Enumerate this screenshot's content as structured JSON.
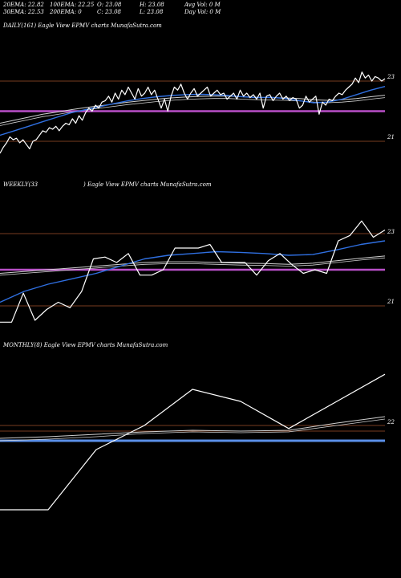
{
  "header": {
    "ema20": "20EMA: 22.82",
    "ema30": "30EMA: 22.53",
    "ema100": "100EMA: 22.25",
    "ema200": "200EMA: 0",
    "open": "O: 23.08",
    "close": "C: 23.08",
    "high": "H: 23.08",
    "low": "L: 23.08",
    "avg_vol": "Avg Vol: 0  M",
    "day_vol": "Day Vol: 0  M"
  },
  "panels": {
    "daily": {
      "label": "DAILY(161) Eagle   View  EPMV charts MunafaSutra.com",
      "y_top": "23",
      "y_bottom": "21"
    },
    "weekly": {
      "label_left": "WEEKLY(33",
      "label_right": ") Eagle   View  EPMV charts MunafaSutra.com",
      "y_top": "23",
      "y_bottom": "21"
    },
    "monthly": {
      "label": "MONTHLY(8) Eagle   View  EPMV charts MunafaSutra.com",
      "y_level": "22"
    }
  },
  "colors": {
    "price": "#ffffff",
    "ema_fast": "#2f6fe0",
    "ema_slow": "#cfcfcf",
    "support_band": "#b94fc8",
    "monthly_band": "#5a8fe8",
    "grid_line": "#a0522d"
  },
  "chart_data": [
    {
      "type": "line",
      "title": "DAILY(161) Eagle   View  EPMV charts MunafaSutra.com",
      "y_ticks": [
        23,
        21
      ],
      "ylim": [
        20.4,
        24.2
      ],
      "series": [
        {
          "values": [
            20.6,
            20.8,
            20.95,
            21.15,
            21.05,
            21.1,
            20.95,
            21.05,
            20.9,
            20.75,
            21.0,
            21.05,
            21.2,
            21.35,
            21.3,
            21.45,
            21.4,
            21.5,
            21.35,
            21.5,
            21.6,
            21.55,
            21.75,
            21.6,
            21.85,
            21.7,
            21.95,
            22.1,
            22.0,
            22.2,
            22.1,
            22.3,
            22.35,
            22.5,
            22.3,
            22.6,
            22.4,
            22.7,
            22.55,
            22.8,
            22.6,
            22.4,
            22.75,
            22.5,
            22.6,
            22.8,
            22.55,
            22.7,
            22.4,
            22.1,
            22.4,
            22.0,
            22.5,
            22.8,
            22.7,
            22.9,
            22.6,
            22.4,
            22.6,
            22.75,
            22.5,
            22.6,
            22.7,
            22.8,
            22.5,
            22.6,
            22.7,
            22.55,
            22.6,
            22.4,
            22.5,
            22.6,
            22.4,
            22.7,
            22.5,
            22.6,
            22.45,
            22.55,
            22.4,
            22.6,
            22.1,
            22.5,
            22.55,
            22.35,
            22.5,
            22.6,
            22.4,
            22.5,
            22.35,
            22.45,
            22.4,
            22.1,
            22.2,
            22.5,
            22.3,
            22.4,
            22.5,
            21.9,
            22.3,
            22.2,
            22.4,
            22.35,
            22.5,
            22.6,
            22.55,
            22.7,
            22.8,
            22.9,
            23.1,
            22.95,
            23.3,
            23.1,
            23.2,
            23.0,
            23.15,
            23.1,
            23.0,
            23.08
          ]
        },
        {
          "values": [
            21.2,
            21.35,
            21.5,
            21.65,
            21.8,
            21.95,
            22.05,
            22.15,
            22.25,
            22.35,
            22.42,
            22.48,
            22.52,
            22.55,
            22.56,
            22.55,
            22.52,
            22.48,
            22.45,
            22.46,
            22.42,
            22.35,
            22.28,
            22.3,
            22.4,
            22.55,
            22.7,
            22.82
          ]
        },
        {
          "values": [
            21.6,
            21.7,
            21.8,
            21.9,
            21.97,
            22.05,
            22.12,
            22.18,
            22.24,
            22.3,
            22.35,
            22.4,
            22.44,
            22.47,
            22.49,
            22.5,
            22.5,
            22.48,
            22.46,
            22.45,
            22.44,
            22.42,
            22.38,
            22.36,
            22.38,
            22.42,
            22.48,
            22.53
          ]
        }
      ],
      "support_level": 22.0
    },
    {
      "type": "line",
      "title": "WEEKLY(33 ) Eagle   View  EPMV charts MunafaSutra.com",
      "y_ticks": [
        23,
        21
      ],
      "ylim": [
        20.4,
        24.2
      ],
      "series": [
        {
          "values": [
            20.55,
            20.55,
            21.35,
            20.6,
            20.9,
            21.1,
            20.95,
            21.4,
            22.3,
            22.35,
            22.2,
            22.45,
            21.85,
            21.85,
            22.0,
            22.6,
            22.6,
            22.6,
            22.7,
            22.2,
            22.2,
            22.2,
            21.85,
            22.25,
            22.45,
            22.15,
            21.9,
            22.0,
            21.9,
            22.8,
            22.95,
            23.35,
            22.9,
            23.1
          ]
        },
        {
          "values": [
            21.1,
            21.4,
            21.6,
            21.75,
            21.9,
            22.1,
            22.3,
            22.4,
            22.45,
            22.5,
            22.48,
            22.45,
            22.4,
            22.42,
            22.55,
            22.7,
            22.8
          ]
        },
        {
          "values": [
            21.9,
            21.95,
            22.0,
            22.05,
            22.1,
            22.15,
            22.2,
            22.22,
            22.22,
            22.2,
            22.18,
            22.17,
            22.15,
            22.18,
            22.25,
            22.32,
            22.38
          ]
        }
      ],
      "support_level": 22.0
    },
    {
      "type": "line",
      "title": "MONTHLY(8) Eagle   View  EPMV charts MunafaSutra.com",
      "y_ticks": [
        22
      ],
      "series": [
        {
          "values": [
            20.6,
            20.6,
            21.6,
            22.0,
            22.6,
            22.4,
            21.95,
            22.4,
            22.85
          ]
        }
      ]
    }
  ]
}
